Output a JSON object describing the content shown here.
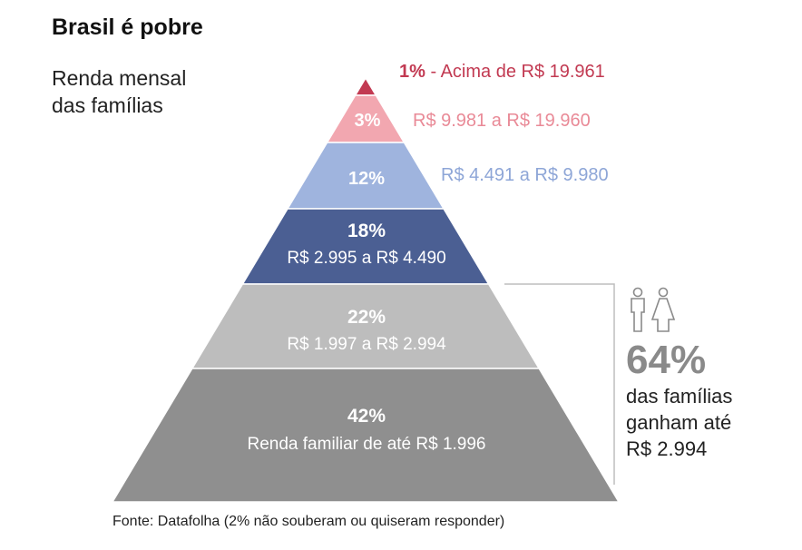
{
  "title": "Brasil é pobre",
  "subtitle": [
    "Renda mensal",
    "das famílias"
  ],
  "source": "Fonte: Datafolha (2% não souberam ou quiseram responder)",
  "colors": {
    "top": "#c23a52",
    "pink": "#f2a7b0",
    "lightblue": "#9fb4de",
    "darkblue": "#4b5f93",
    "lightgray": "#bdbdbd",
    "darkgray": "#8f8f8f",
    "callout": "#8a8a8a"
  },
  "chart_data": {
    "type": "bar",
    "tiers": [
      {
        "pct": "1%",
        "label": "- Acima de R$ 19.961",
        "value": 1,
        "label_pos": "outside",
        "color": "#c23a52",
        "text_color": "#c23a52"
      },
      {
        "pct": "3%",
        "label": "R$ 9.981 a R$ 19.960",
        "value": 3,
        "label_pos": "outside",
        "color": "#f2a7b0",
        "text_color": "#e98a97"
      },
      {
        "pct": "12%",
        "label": "R$ 4.491 a R$ 9.980",
        "value": 12,
        "label_pos": "outside",
        "color": "#9fb4de",
        "text_color": "#8ea6d7"
      },
      {
        "pct": "18%",
        "label": "R$ 2.995 a R$ 4.490",
        "value": 18,
        "label_pos": "inside",
        "color": "#4b5f93",
        "text_color": "#ffffff"
      },
      {
        "pct": "22%",
        "label": "R$ 1.997 a R$ 2.994",
        "value": 22,
        "label_pos": "inside",
        "color": "#bdbdbd",
        "text_color": "#ffffff"
      },
      {
        "pct": "42%",
        "label": "Renda familiar de até R$ 1.996",
        "value": 42,
        "label_pos": "inside",
        "color": "#8f8f8f",
        "text_color": "#ffffff"
      }
    ],
    "callout": {
      "value": "64%",
      "lines": [
        "das famílias",
        "ganham até",
        "R$ 2.994"
      ],
      "icon": "man-woman-icon"
    }
  }
}
